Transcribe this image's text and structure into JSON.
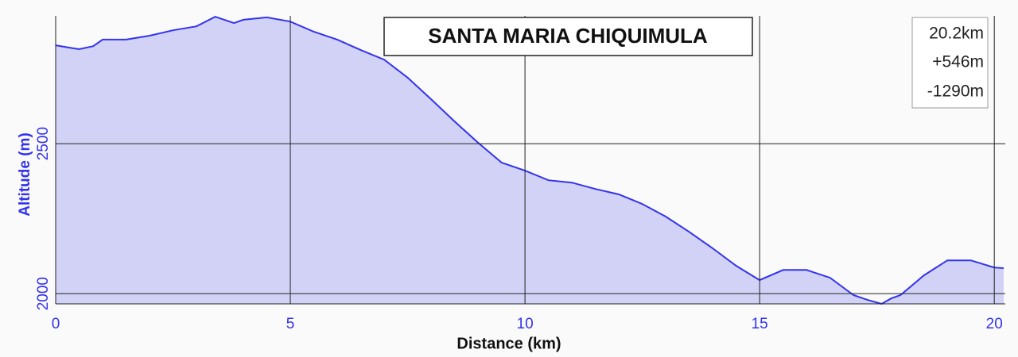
{
  "chart_data": {
    "type": "area",
    "title": "SANTA MARIA CHIQUIMULA",
    "stats": [
      "20.2km",
      "+546m",
      "-1290m"
    ],
    "x_label": "Distance (km)",
    "y_label": "Altitude (m)",
    "x": [
      0,
      0.3,
      0.5,
      0.8,
      1.0,
      1.5,
      2.0,
      2.5,
      3.0,
      3.4,
      3.8,
      4.0,
      4.5,
      5.0,
      5.5,
      6.0,
      6.5,
      7.0,
      7.5,
      8.0,
      8.5,
      9.0,
      9.5,
      10.0,
      10.5,
      11.0,
      11.5,
      12.0,
      12.5,
      13.0,
      13.5,
      14.0,
      14.5,
      15.0,
      15.5,
      16.0,
      16.5,
      17.0,
      17.3,
      17.6,
      17.8,
      18.0,
      18.5,
      19.0,
      19.5,
      20.0,
      20.2
    ],
    "series": [
      {
        "name": "Altitude",
        "color": "#3333ee",
        "fill": "#d2d2f7",
        "values": [
          2828,
          2820,
          2815,
          2825,
          2847,
          2847,
          2860,
          2878,
          2891,
          2923,
          2902,
          2913,
          2921,
          2907,
          2873,
          2847,
          2812,
          2780,
          2720,
          2648,
          2574,
          2503,
          2437,
          2410,
          2378,
          2370,
          2349,
          2331,
          2299,
          2257,
          2206,
          2151,
          2093,
          2045,
          2079,
          2079,
          2053,
          1995,
          1979,
          1966,
          1984,
          1995,
          2061,
          2111,
          2111,
          2087,
          2085
        ]
      }
    ],
    "xlim": [
      0,
      20.2
    ],
    "xticks": [
      0,
      5,
      10,
      15,
      20
    ],
    "ylim": [
      1966,
      2926
    ],
    "yticks": [
      2000,
      2500
    ],
    "grid": true
  }
}
